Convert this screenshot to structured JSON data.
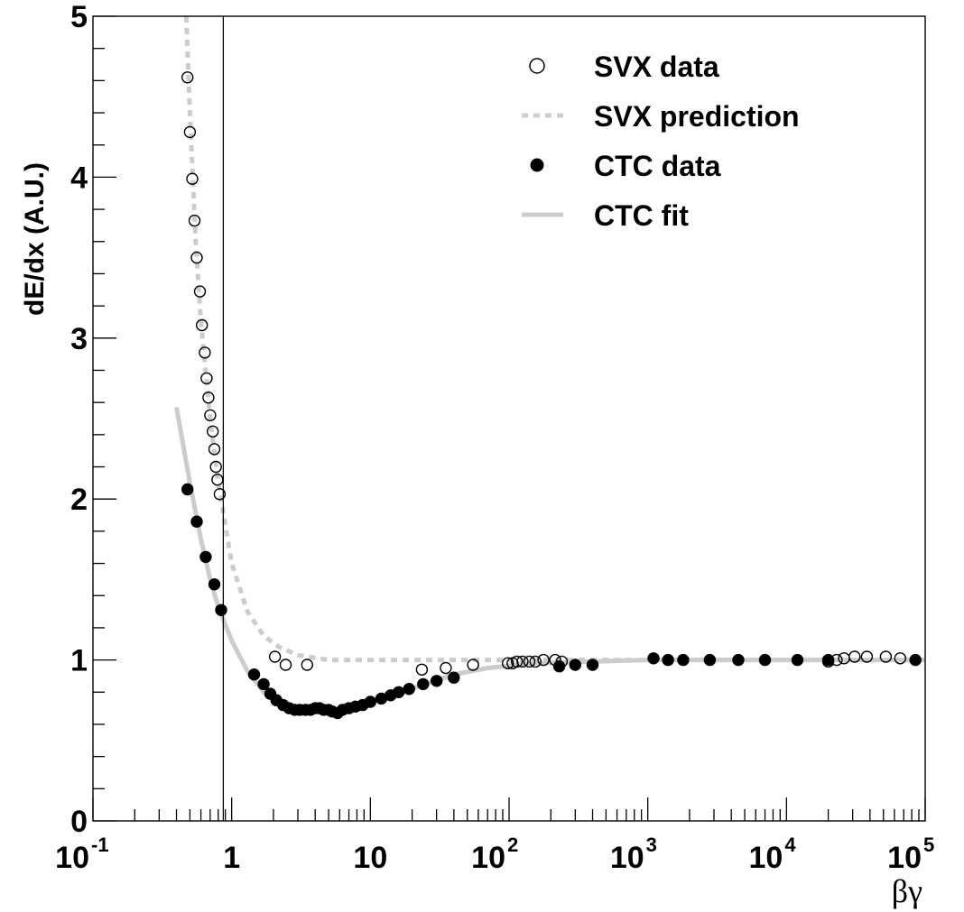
{
  "chart_data": {
    "type": "scatter",
    "title": "",
    "xlabel": "βγ",
    "ylabel": "dE/dx (A.U.)",
    "xscale": "log",
    "xlim": [
      0.1,
      100000
    ],
    "ylim": [
      0,
      5
    ],
    "grid": false,
    "legend_position": "top-right",
    "x_tick_labels": [
      {
        "base": "10",
        "exp": "-1"
      },
      {
        "base": "1",
        "exp": ""
      },
      {
        "base": "10",
        "exp": ""
      },
      {
        "base": "10",
        "exp": "2"
      },
      {
        "base": "10",
        "exp": "3"
      },
      {
        "base": "10",
        "exp": "4"
      },
      {
        "base": "10",
        "exp": "5"
      }
    ],
    "y_tick_labels": [
      "0",
      "1",
      "2",
      "3",
      "4",
      "5"
    ],
    "vertical_line_x": 0.87,
    "series": [
      {
        "name": "SVX data",
        "style": "open-circle",
        "color": "#000000",
        "points": [
          [
            0.48,
            4.62
          ],
          [
            0.5,
            4.28
          ],
          [
            0.52,
            3.99
          ],
          [
            0.54,
            3.73
          ],
          [
            0.56,
            3.5
          ],
          [
            0.59,
            3.29
          ],
          [
            0.61,
            3.08
          ],
          [
            0.64,
            2.91
          ],
          [
            0.66,
            2.75
          ],
          [
            0.68,
            2.63
          ],
          [
            0.7,
            2.52
          ],
          [
            0.73,
            2.42
          ],
          [
            0.75,
            2.31
          ],
          [
            0.77,
            2.2
          ],
          [
            0.79,
            2.12
          ],
          [
            0.82,
            2.03
          ],
          [
            2.05,
            1.02
          ],
          [
            2.45,
            0.97
          ],
          [
            3.5,
            0.97
          ],
          [
            23.5,
            0.94
          ],
          [
            35,
            0.95
          ],
          [
            55,
            0.97
          ],
          [
            98,
            0.98
          ],
          [
            106,
            0.98
          ],
          [
            114,
            0.99
          ],
          [
            125,
            0.99
          ],
          [
            140,
            0.99
          ],
          [
            155,
            0.99
          ],
          [
            177,
            1.0
          ],
          [
            215,
            1.0
          ],
          [
            240,
            0.99
          ],
          [
            20000,
            0.99
          ],
          [
            23000,
            1.0
          ],
          [
            26000,
            1.01
          ],
          [
            31000,
            1.02
          ],
          [
            38000,
            1.02
          ],
          [
            52000,
            1.02
          ],
          [
            66000,
            1.01
          ]
        ]
      },
      {
        "name": "SVX prediction",
        "style": "dotted-line",
        "color": "#cccccc",
        "points": [
          [
            0.47,
            5.0
          ],
          [
            0.5,
            4.4
          ],
          [
            0.55,
            3.6
          ],
          [
            0.6,
            3.1
          ],
          [
            0.7,
            2.5
          ],
          [
            0.8,
            2.1
          ],
          [
            1.0,
            1.6
          ],
          [
            1.3,
            1.3
          ],
          [
            1.7,
            1.15
          ],
          [
            2.2,
            1.08
          ],
          [
            3.0,
            1.03
          ],
          [
            5.0,
            1.0
          ],
          [
            10,
            1.0
          ],
          [
            100,
            1.0
          ],
          [
            1000,
            1.0
          ],
          [
            10000,
            1.0
          ],
          [
            100000,
            1.0
          ]
        ]
      },
      {
        "name": "CTC data",
        "style": "filled-circle",
        "color": "#000000",
        "points": [
          [
            0.48,
            2.06
          ],
          [
            0.56,
            1.86
          ],
          [
            0.65,
            1.64
          ],
          [
            0.75,
            1.47
          ],
          [
            0.84,
            1.31
          ],
          [
            1.45,
            0.91
          ],
          [
            1.7,
            0.85
          ],
          [
            1.9,
            0.79
          ],
          [
            2.1,
            0.75
          ],
          [
            2.35,
            0.72
          ],
          [
            2.6,
            0.7
          ],
          [
            2.85,
            0.69
          ],
          [
            3.1,
            0.69
          ],
          [
            3.4,
            0.69
          ],
          [
            3.7,
            0.69
          ],
          [
            4.0,
            0.7
          ],
          [
            4.3,
            0.7
          ],
          [
            4.6,
            0.69
          ],
          [
            5.0,
            0.69
          ],
          [
            5.3,
            0.68
          ],
          [
            5.8,
            0.67
          ],
          [
            6.3,
            0.69
          ],
          [
            7.0,
            0.7
          ],
          [
            7.8,
            0.71
          ],
          [
            8.8,
            0.72
          ],
          [
            10,
            0.74
          ],
          [
            12,
            0.76
          ],
          [
            14,
            0.78
          ],
          [
            16,
            0.8
          ],
          [
            19,
            0.82
          ],
          [
            24,
            0.85
          ],
          [
            30,
            0.87
          ],
          [
            40,
            0.89
          ],
          [
            230,
            0.96
          ],
          [
            300,
            0.97
          ],
          [
            400,
            0.97
          ],
          [
            1100,
            1.01
          ],
          [
            1400,
            1.0
          ],
          [
            1800,
            1.0
          ],
          [
            2800,
            1.0
          ],
          [
            4500,
            1.0
          ],
          [
            7000,
            1.0
          ],
          [
            12000,
            1.0
          ],
          [
            20000,
            1.0
          ],
          [
            85000,
            1.0
          ]
        ]
      },
      {
        "name": "CTC fit",
        "style": "solid-line",
        "color": "#cccccc",
        "points": [
          [
            0.4,
            2.57
          ],
          [
            0.5,
            2.1
          ],
          [
            0.6,
            1.75
          ],
          [
            0.7,
            1.5
          ],
          [
            0.8,
            1.33
          ],
          [
            1.0,
            1.12
          ],
          [
            1.3,
            0.93
          ],
          [
            1.7,
            0.8
          ],
          [
            2.2,
            0.73
          ],
          [
            3.0,
            0.69
          ],
          [
            4.0,
            0.68
          ],
          [
            5.5,
            0.68
          ],
          [
            7.0,
            0.7
          ],
          [
            10,
            0.74
          ],
          [
            15,
            0.79
          ],
          [
            25,
            0.85
          ],
          [
            40,
            0.91
          ],
          [
            70,
            0.95
          ],
          [
            150,
            0.98
          ],
          [
            400,
            0.99
          ],
          [
            1000,
            1.0
          ],
          [
            10000,
            1.0
          ],
          [
            100000,
            1.0
          ]
        ]
      }
    ]
  }
}
